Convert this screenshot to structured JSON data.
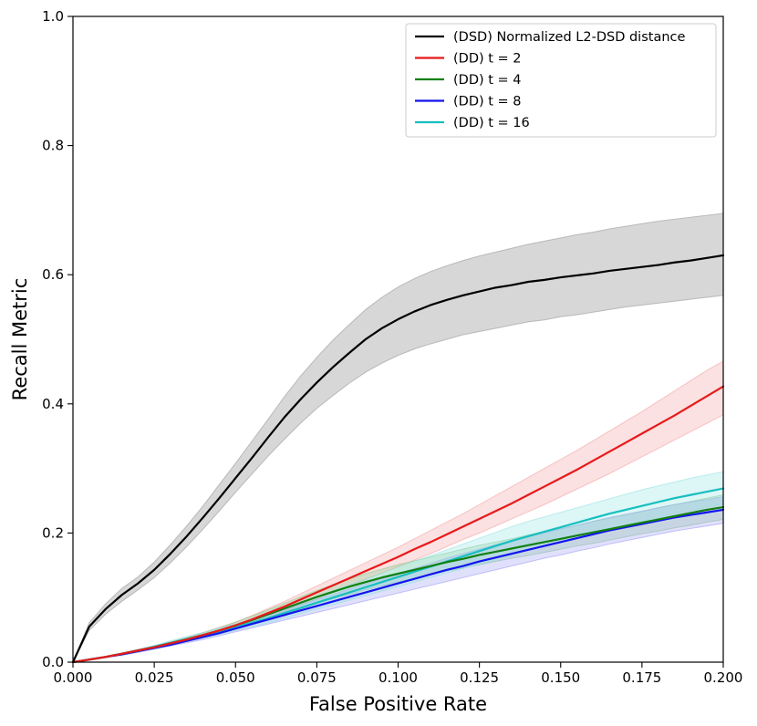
{
  "chart_data": {
    "type": "line",
    "title": "",
    "xlabel": "False Positive Rate",
    "ylabel": "Recall Metric",
    "xlim": [
      0.0,
      0.2
    ],
    "ylim": [
      0.0,
      1.0
    ],
    "xticks": [
      0.0,
      0.025,
      0.05,
      0.075,
      0.1,
      0.125,
      0.15,
      0.175,
      0.2
    ],
    "xtick_labels": [
      "0.000",
      "0.025",
      "0.050",
      "0.075",
      "0.100",
      "0.125",
      "0.150",
      "0.175",
      "0.200"
    ],
    "yticks": [
      0.0,
      0.2,
      0.4,
      0.6,
      0.8,
      1.0
    ],
    "ytick_labels": [
      "0.0",
      "0.2",
      "0.4",
      "0.6",
      "0.8",
      "1.0"
    ],
    "grid": false,
    "legend_position": "top-right",
    "x": [
      0.0,
      0.005,
      0.01,
      0.015,
      0.02,
      0.025,
      0.03,
      0.035,
      0.04,
      0.045,
      0.05,
      0.055,
      0.06,
      0.065,
      0.07,
      0.075,
      0.08,
      0.085,
      0.09,
      0.095,
      0.1,
      0.105,
      0.11,
      0.115,
      0.12,
      0.125,
      0.13,
      0.135,
      0.14,
      0.145,
      0.15,
      0.155,
      0.16,
      0.165,
      0.17,
      0.175,
      0.18,
      0.185,
      0.19,
      0.195,
      0.2
    ],
    "series": [
      {
        "name": "(DSD) Normalized L2-DSD distance",
        "color": "#000000",
        "band_color": "#9a9a9a",
        "values": [
          0.0,
          0.055,
          0.082,
          0.104,
          0.122,
          0.143,
          0.168,
          0.195,
          0.224,
          0.254,
          0.285,
          0.316,
          0.348,
          0.379,
          0.407,
          0.433,
          0.457,
          0.479,
          0.5,
          0.517,
          0.531,
          0.543,
          0.553,
          0.561,
          0.568,
          0.574,
          0.58,
          0.584,
          0.589,
          0.592,
          0.596,
          0.599,
          0.602,
          0.606,
          0.609,
          0.612,
          0.615,
          0.619,
          0.622,
          0.626,
          0.63
        ],
        "lower": [
          0.0,
          0.049,
          0.074,
          0.094,
          0.112,
          0.131,
          0.154,
          0.179,
          0.206,
          0.234,
          0.263,
          0.291,
          0.319,
          0.345,
          0.37,
          0.393,
          0.413,
          0.432,
          0.449,
          0.463,
          0.475,
          0.485,
          0.493,
          0.5,
          0.507,
          0.512,
          0.517,
          0.522,
          0.527,
          0.53,
          0.535,
          0.538,
          0.542,
          0.546,
          0.55,
          0.553,
          0.556,
          0.559,
          0.562,
          0.565,
          0.568
        ],
        "upper": [
          0.0,
          0.061,
          0.09,
          0.114,
          0.132,
          0.155,
          0.182,
          0.211,
          0.242,
          0.275,
          0.308,
          0.342,
          0.376,
          0.411,
          0.443,
          0.472,
          0.499,
          0.523,
          0.546,
          0.565,
          0.581,
          0.594,
          0.605,
          0.614,
          0.622,
          0.629,
          0.635,
          0.641,
          0.647,
          0.652,
          0.657,
          0.662,
          0.666,
          0.671,
          0.675,
          0.679,
          0.683,
          0.686,
          0.689,
          0.692,
          0.695
        ]
      },
      {
        "name": "(DD) t = 2",
        "color": "#e8191a",
        "band_color": "#f4a3a3",
        "values": [
          0.0,
          0.004,
          0.008,
          0.013,
          0.018,
          0.023,
          0.029,
          0.035,
          0.042,
          0.049,
          0.057,
          0.066,
          0.076,
          0.086,
          0.097,
          0.108,
          0.119,
          0.13,
          0.141,
          0.152,
          0.163,
          0.175,
          0.186,
          0.198,
          0.21,
          0.222,
          0.234,
          0.246,
          0.259,
          0.272,
          0.285,
          0.298,
          0.312,
          0.326,
          0.34,
          0.354,
          0.368,
          0.382,
          0.397,
          0.412,
          0.427
        ],
        "lower": [
          0.0,
          0.004,
          0.007,
          0.012,
          0.016,
          0.021,
          0.026,
          0.032,
          0.038,
          0.045,
          0.052,
          0.06,
          0.069,
          0.078,
          0.088,
          0.098,
          0.108,
          0.118,
          0.128,
          0.138,
          0.148,
          0.158,
          0.168,
          0.179,
          0.19,
          0.2,
          0.211,
          0.222,
          0.233,
          0.244,
          0.256,
          0.268,
          0.28,
          0.292,
          0.305,
          0.318,
          0.331,
          0.344,
          0.357,
          0.37,
          0.383
        ],
        "upper": [
          0.0,
          0.005,
          0.009,
          0.014,
          0.02,
          0.025,
          0.032,
          0.038,
          0.046,
          0.054,
          0.062,
          0.072,
          0.083,
          0.094,
          0.106,
          0.118,
          0.13,
          0.142,
          0.154,
          0.166,
          0.178,
          0.191,
          0.204,
          0.217,
          0.23,
          0.244,
          0.258,
          0.272,
          0.286,
          0.3,
          0.314,
          0.328,
          0.343,
          0.358,
          0.373,
          0.388,
          0.404,
          0.42,
          0.436,
          0.452,
          0.466
        ]
      },
      {
        "name": "(DD) t = 4",
        "color": "#118011",
        "band_color": "#8ccc8c",
        "values": [
          0.0,
          0.004,
          0.008,
          0.013,
          0.018,
          0.023,
          0.029,
          0.035,
          0.042,
          0.049,
          0.057,
          0.065,
          0.074,
          0.083,
          0.092,
          0.101,
          0.109,
          0.117,
          0.124,
          0.131,
          0.137,
          0.143,
          0.149,
          0.155,
          0.16,
          0.166,
          0.171,
          0.176,
          0.181,
          0.186,
          0.191,
          0.196,
          0.201,
          0.206,
          0.211,
          0.216,
          0.221,
          0.226,
          0.231,
          0.236,
          0.24
        ],
        "lower": [
          0.0,
          0.004,
          0.007,
          0.012,
          0.016,
          0.021,
          0.027,
          0.032,
          0.038,
          0.045,
          0.052,
          0.059,
          0.067,
          0.075,
          0.083,
          0.091,
          0.098,
          0.105,
          0.112,
          0.118,
          0.124,
          0.13,
          0.135,
          0.141,
          0.146,
          0.151,
          0.156,
          0.161,
          0.165,
          0.17,
          0.175,
          0.18,
          0.184,
          0.189,
          0.194,
          0.199,
          0.203,
          0.208,
          0.212,
          0.217,
          0.221
        ],
        "upper": [
          0.0,
          0.005,
          0.009,
          0.014,
          0.019,
          0.025,
          0.031,
          0.038,
          0.045,
          0.053,
          0.062,
          0.071,
          0.081,
          0.091,
          0.101,
          0.111,
          0.12,
          0.129,
          0.137,
          0.144,
          0.151,
          0.157,
          0.163,
          0.169,
          0.175,
          0.181,
          0.186,
          0.191,
          0.197,
          0.202,
          0.207,
          0.212,
          0.218,
          0.223,
          0.228,
          0.233,
          0.239,
          0.244,
          0.249,
          0.254,
          0.259
        ]
      },
      {
        "name": "(DD) t = 8",
        "color": "#1414ee",
        "band_color": "#9f9ff5",
        "values": [
          0.0,
          0.004,
          0.008,
          0.012,
          0.017,
          0.022,
          0.027,
          0.033,
          0.039,
          0.045,
          0.052,
          0.059,
          0.066,
          0.073,
          0.08,
          0.087,
          0.094,
          0.101,
          0.108,
          0.115,
          0.122,
          0.129,
          0.136,
          0.143,
          0.149,
          0.156,
          0.162,
          0.168,
          0.174,
          0.18,
          0.186,
          0.192,
          0.198,
          0.204,
          0.209,
          0.214,
          0.219,
          0.224,
          0.228,
          0.232,
          0.236
        ],
        "lower": [
          0.0,
          0.003,
          0.007,
          0.011,
          0.015,
          0.02,
          0.025,
          0.03,
          0.035,
          0.041,
          0.047,
          0.053,
          0.059,
          0.065,
          0.071,
          0.077,
          0.083,
          0.089,
          0.095,
          0.101,
          0.107,
          0.113,
          0.119,
          0.125,
          0.131,
          0.137,
          0.143,
          0.149,
          0.155,
          0.161,
          0.166,
          0.172,
          0.177,
          0.183,
          0.188,
          0.193,
          0.198,
          0.203,
          0.207,
          0.211,
          0.215
        ],
        "upper": [
          0.0,
          0.004,
          0.009,
          0.013,
          0.019,
          0.024,
          0.029,
          0.036,
          0.043,
          0.05,
          0.057,
          0.065,
          0.073,
          0.081,
          0.089,
          0.097,
          0.105,
          0.113,
          0.121,
          0.129,
          0.137,
          0.145,
          0.153,
          0.161,
          0.168,
          0.175,
          0.182,
          0.188,
          0.194,
          0.2,
          0.206,
          0.212,
          0.218,
          0.224,
          0.229,
          0.234,
          0.239,
          0.244,
          0.248,
          0.252,
          0.256
        ]
      },
      {
        "name": "(DD) t = 16",
        "color": "#17bfbf",
        "band_color": "#95e3e3",
        "values": [
          0.0,
          0.004,
          0.008,
          0.013,
          0.018,
          0.024,
          0.03,
          0.036,
          0.042,
          0.048,
          0.054,
          0.061,
          0.068,
          0.076,
          0.084,
          0.092,
          0.1,
          0.108,
          0.116,
          0.124,
          0.132,
          0.14,
          0.148,
          0.156,
          0.164,
          0.172,
          0.18,
          0.188,
          0.195,
          0.202,
          0.209,
          0.216,
          0.223,
          0.23,
          0.236,
          0.242,
          0.248,
          0.254,
          0.259,
          0.264,
          0.269
        ],
        "lower": [
          0.0,
          0.004,
          0.007,
          0.012,
          0.016,
          0.022,
          0.027,
          0.032,
          0.038,
          0.043,
          0.049,
          0.055,
          0.061,
          0.068,
          0.075,
          0.082,
          0.089,
          0.096,
          0.103,
          0.11,
          0.117,
          0.124,
          0.131,
          0.138,
          0.145,
          0.152,
          0.159,
          0.166,
          0.173,
          0.18,
          0.187,
          0.193,
          0.2,
          0.206,
          0.212,
          0.218,
          0.224,
          0.23,
          0.235,
          0.24,
          0.245
        ],
        "upper": [
          0.0,
          0.005,
          0.009,
          0.014,
          0.02,
          0.026,
          0.033,
          0.04,
          0.046,
          0.053,
          0.059,
          0.067,
          0.075,
          0.084,
          0.093,
          0.102,
          0.111,
          0.12,
          0.129,
          0.138,
          0.147,
          0.156,
          0.165,
          0.174,
          0.183,
          0.192,
          0.201,
          0.21,
          0.218,
          0.225,
          0.232,
          0.239,
          0.246,
          0.253,
          0.26,
          0.267,
          0.273,
          0.279,
          0.285,
          0.29,
          0.295
        ]
      }
    ]
  }
}
